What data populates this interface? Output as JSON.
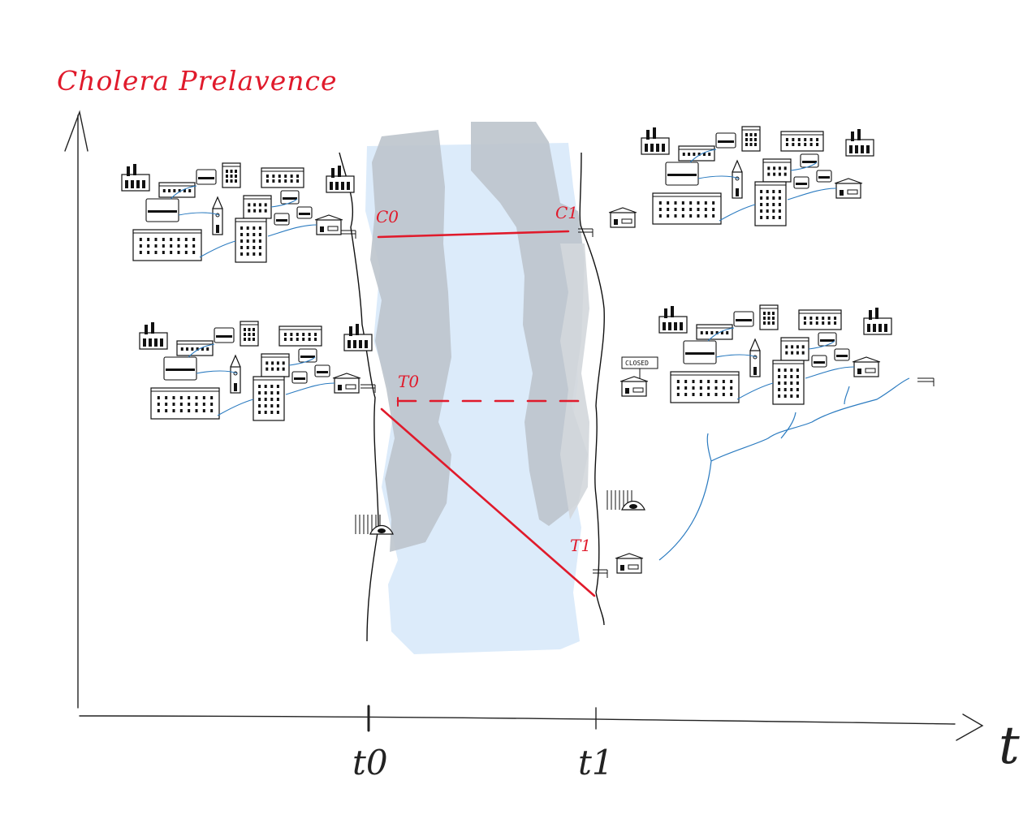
{
  "title": "Cholera Prelavence",
  "axis": {
    "x_symbol": "t",
    "ticks": [
      "t0",
      "t1"
    ]
  },
  "labels": {
    "c0": "C0",
    "c1": "C1",
    "t0": "T0",
    "t1": "T1"
  },
  "sign": "CLOSED",
  "colors": {
    "annotation": "#e01a2b",
    "river": "#dcebfa",
    "bank": "#c2c8cf",
    "water_link": "#2b7bc0",
    "ink": "#111111"
  }
}
